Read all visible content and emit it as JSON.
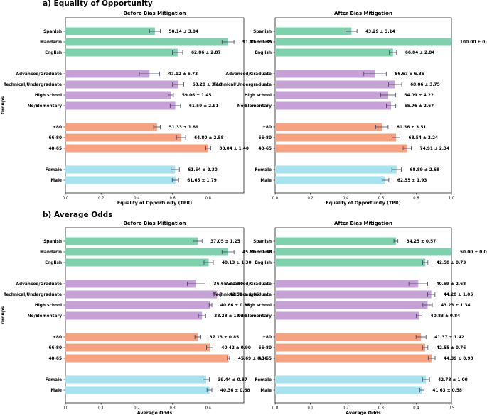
{
  "colors": {
    "language": "#7fd1ad",
    "education": "#c5a1d6",
    "age": "#f6a180",
    "gender": "#a6e3ef",
    "error": "#404060"
  },
  "group_axis_label": "Groups",
  "sections": [
    {
      "title": "a) Equality of Opportunity"
    },
    {
      "title": "b) Average Odds"
    }
  ],
  "chart_data": [
    {
      "type": "bar",
      "orientation": "horizontal",
      "title": "Before Bias Mitigation",
      "xlabel": "Equality of Opportunity (TPR)",
      "ylabel": "Groups",
      "xlim": [
        0,
        1.0
      ],
      "xticks": [
        "0.0",
        "0.2",
        "0.4",
        "0.6",
        "0.8"
      ],
      "xtick_values": [
        0,
        0.2,
        0.4,
        0.6,
        0.8
      ],
      "categories": [
        {
          "label": "Spanish",
          "group": "language",
          "value": 0.5014,
          "error": 0.0304,
          "text": "50.14 ± 3.04"
        },
        {
          "label": "Mandarin",
          "group": "language",
          "value": 0.9111,
          "error": 0.0335,
          "text": "91.11 ± 3.35"
        },
        {
          "label": "English",
          "group": "language",
          "value": 0.6286,
          "error": 0.0287,
          "text": "62.86 ± 2.87"
        },
        {
          "label": "Advanced/Graduate",
          "group": "education",
          "value": 0.4712,
          "error": 0.0573,
          "text": "47.12 ± 5.73"
        },
        {
          "label": "Technical/Undergraduate",
          "group": "education",
          "value": 0.632,
          "error": 0.0318,
          "text": "63.20 ± 3.18"
        },
        {
          "label": "High school",
          "group": "education",
          "value": 0.5906,
          "error": 0.0145,
          "text": "59.06 ± 1.45"
        },
        {
          "label": "No/Elementary",
          "group": "education",
          "value": 0.6159,
          "error": 0.0291,
          "text": "61.59 ± 2.91"
        },
        {
          "label": "+80",
          "group": "age",
          "value": 0.5133,
          "error": 0.0189,
          "text": "51.33 ± 1.89"
        },
        {
          "label": "66-80",
          "group": "age",
          "value": 0.648,
          "error": 0.0258,
          "text": "64.80 ± 2.58"
        },
        {
          "label": "40-65",
          "group": "age",
          "value": 0.8004,
          "error": 0.014,
          "text": "80.04 ± 1.40"
        },
        {
          "label": "Female",
          "group": "gender",
          "value": 0.6154,
          "error": 0.023,
          "text": "61.54 ± 2.30"
        },
        {
          "label": "Male",
          "group": "gender",
          "value": 0.6165,
          "error": 0.0179,
          "text": "61.65 ± 1.79"
        }
      ]
    },
    {
      "type": "bar",
      "orientation": "horizontal",
      "title": "After Bias Mitigation",
      "xlabel": "Equality of Opportunity (TPR)",
      "ylabel": "",
      "xlim": [
        0,
        1.0
      ],
      "xticks": [
        "0.0",
        "0.2",
        "0.4",
        "0.6",
        "0.8",
        "1.0"
      ],
      "xtick_values": [
        0,
        0.2,
        0.4,
        0.6,
        0.8,
        1.0
      ],
      "categories": [
        {
          "label": "Spanish",
          "group": "language",
          "value": 0.4329,
          "error": 0.0314,
          "text": "43.29 ± 3.14"
        },
        {
          "label": "Mandarin",
          "group": "language",
          "value": 1.0,
          "error": 0.0,
          "text": "100.00 ± 0.00"
        },
        {
          "label": "English",
          "group": "language",
          "value": 0.6684,
          "error": 0.0204,
          "text": "66.84 ± 2.04"
        },
        {
          "label": "Advanced/Graduate",
          "group": "education",
          "value": 0.5667,
          "error": 0.0636,
          "text": "56.67 ± 6.36"
        },
        {
          "label": "Technical/Undergraduate",
          "group": "education",
          "value": 0.6806,
          "error": 0.0375,
          "text": "68.06 ± 3.75"
        },
        {
          "label": "High school",
          "group": "education",
          "value": 0.6409,
          "error": 0.0422,
          "text": "64.09 ± 4.22"
        },
        {
          "label": "No/Elementary",
          "group": "education",
          "value": 0.6576,
          "error": 0.0267,
          "text": "65.76 ± 2.67"
        },
        {
          "label": "+80",
          "group": "age",
          "value": 0.6056,
          "error": 0.0351,
          "text": "60.56 ± 3.51"
        },
        {
          "label": "66-80",
          "group": "age",
          "value": 0.6854,
          "error": 0.0224,
          "text": "68.54 ± 2.24"
        },
        {
          "label": "40-65",
          "group": "age",
          "value": 0.7491,
          "error": 0.0234,
          "text": "74.91 ± 2.34"
        },
        {
          "label": "Female",
          "group": "gender",
          "value": 0.6889,
          "error": 0.0268,
          "text": "68.89 ± 2.68"
        },
        {
          "label": "Male",
          "group": "gender",
          "value": 0.6255,
          "error": 0.0193,
          "text": "62.55 ± 1.93"
        }
      ]
    },
    {
      "type": "bar",
      "orientation": "horizontal",
      "title": "Before Bias Mitigation",
      "xlabel": "Average Odds",
      "ylabel": "Groups",
      "xlim": [
        0,
        0.5
      ],
      "xticks": [
        "0.0",
        "0.1",
        "0.2",
        "0.3",
        "0.4"
      ],
      "xtick_values": [
        0,
        0.1,
        0.2,
        0.3,
        0.4
      ],
      "categories": [
        {
          "label": "Spanish",
          "group": "language",
          "value": 0.3705,
          "error": 0.0125,
          "text": "37.05 ± 1.25"
        },
        {
          "label": "Mandarin",
          "group": "language",
          "value": 0.4556,
          "error": 0.0168,
          "text": "45.56 ± 1.68"
        },
        {
          "label": "English",
          "group": "language",
          "value": 0.4013,
          "error": 0.013,
          "text": "40.13 ± 1.30"
        },
        {
          "label": "Advanced/Graduate",
          "group": "education",
          "value": 0.3665,
          "error": 0.025,
          "text": "36.65 ± 2.50"
        },
        {
          "label": "Technical/Undergraduate",
          "group": "education",
          "value": 0.4251,
          "error": 0.0106,
          "text": "42.51 ± 1.06"
        },
        {
          "label": "High school",
          "group": "education",
          "value": 0.4066,
          "error": 0.0038,
          "text": "40.66 ± 0.38"
        },
        {
          "label": "No/Elementary",
          "group": "education",
          "value": 0.3828,
          "error": 0.0102,
          "text": "38.28 ± 1.02"
        },
        {
          "label": "+80",
          "group": "age",
          "value": 0.3713,
          "error": 0.0085,
          "text": "37.13 ± 0.85"
        },
        {
          "label": "66-80",
          "group": "age",
          "value": 0.4042,
          "error": 0.009,
          "text": "40.42 ± 0.90"
        },
        {
          "label": "40-65",
          "group": "age",
          "value": 0.4569,
          "error": 0.003,
          "text": "45.69 ± 0.30"
        },
        {
          "label": "Female",
          "group": "gender",
          "value": 0.3944,
          "error": 0.0087,
          "text": "39.44 ± 0.87"
        },
        {
          "label": "Male",
          "group": "gender",
          "value": 0.4036,
          "error": 0.0068,
          "text": "40.36 ± 0.68"
        }
      ]
    },
    {
      "type": "bar",
      "orientation": "horizontal",
      "title": "After Bias Mitigation",
      "xlabel": "Average Odds",
      "ylabel": "",
      "xlim": [
        0,
        0.5
      ],
      "xticks": [
        "0.0",
        "0.1",
        "0.2",
        "0.3",
        "0.4",
        "0.5"
      ],
      "xtick_values": [
        0,
        0.1,
        0.2,
        0.3,
        0.4,
        0.5
      ],
      "categories": [
        {
          "label": "Spanish",
          "group": "language",
          "value": 0.3425,
          "error": 0.0057,
          "text": "34.25 ± 0.57"
        },
        {
          "label": "Mandarin",
          "group": "language",
          "value": 0.5,
          "error": 0.0,
          "text": "50.00 ± 0.00"
        },
        {
          "label": "English",
          "group": "language",
          "value": 0.4258,
          "error": 0.0073,
          "text": "42.58 ± 0.73"
        },
        {
          "label": "Advanced/Graduate",
          "group": "education",
          "value": 0.4059,
          "error": 0.0268,
          "text": "40.59 ± 2.68"
        },
        {
          "label": "Technical/Undergraduate",
          "group": "education",
          "value": 0.4428,
          "error": 0.0105,
          "text": "44.28 ± 1.05"
        },
        {
          "label": "High school",
          "group": "education",
          "value": 0.4323,
          "error": 0.0134,
          "text": "43.23 ± 1.34"
        },
        {
          "label": "No/Elementary",
          "group": "education",
          "value": 0.4083,
          "error": 0.0084,
          "text": "40.83 ± 0.84"
        },
        {
          "label": "+80",
          "group": "age",
          "value": 0.4137,
          "error": 0.0142,
          "text": "41.37 ± 1.42"
        },
        {
          "label": "66-80",
          "group": "age",
          "value": 0.4255,
          "error": 0.0076,
          "text": "42.55 ± 0.76"
        },
        {
          "label": "40-65",
          "group": "age",
          "value": 0.4439,
          "error": 0.0098,
          "text": "44.39 ± 0.98"
        },
        {
          "label": "Female",
          "group": "gender",
          "value": 0.4278,
          "error": 0.01,
          "text": "42.78 ± 1.00"
        },
        {
          "label": "Male",
          "group": "gender",
          "value": 0.4163,
          "error": 0.0058,
          "text": "41.63 ± 0.58"
        }
      ]
    }
  ]
}
